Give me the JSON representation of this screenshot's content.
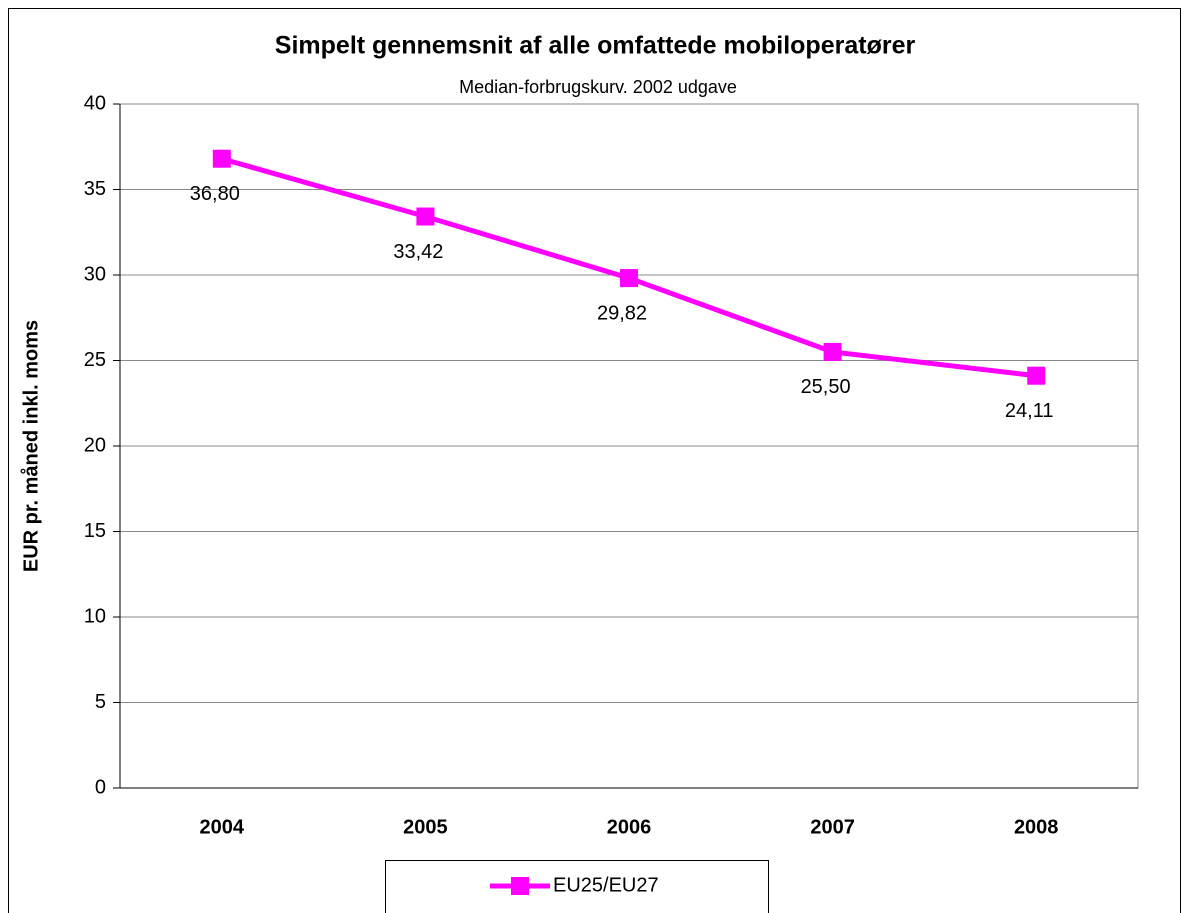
{
  "chart_data": {
    "type": "line",
    "title": "Simpelt gennemsnit af alle omfattede mobiloperatører",
    "subtitle": "Median-forbrugskurv. 2002 udgave",
    "y_label": "EUR pr. måned inkl. moms",
    "categories": [
      "2004",
      "2005",
      "2006",
      "2007",
      "2008"
    ],
    "series": [
      {
        "name": "EU25/EU27",
        "color": "#ff00ff",
        "values": [
          36.8,
          33.42,
          29.82,
          25.5,
          24.11
        ],
        "value_labels": [
          "36,80",
          "33,42",
          "29,82",
          "25,50",
          "24,11"
        ]
      }
    ],
    "ylim": [
      0,
      40
    ],
    "yticks": [
      0,
      5,
      10,
      15,
      20,
      25,
      30,
      35,
      40
    ],
    "grid": true,
    "legend": "bottom"
  }
}
